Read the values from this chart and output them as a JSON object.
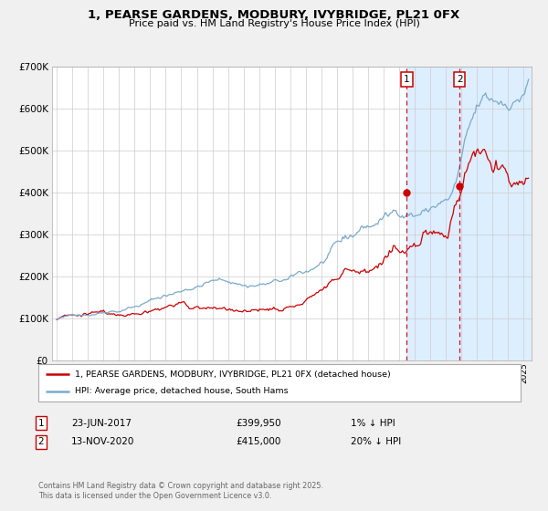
{
  "title": "1, PEARSE GARDENS, MODBURY, IVYBRIDGE, PL21 0FX",
  "subtitle": "Price paid vs. HM Land Registry's House Price Index (HPI)",
  "legend_line1": "1, PEARSE GARDENS, MODBURY, IVYBRIDGE, PL21 0FX (detached house)",
  "legend_line2": "HPI: Average price, detached house, South Hams",
  "footnote": "Contains HM Land Registry data © Crown copyright and database right 2025.\nThis data is licensed under the Open Government Licence v3.0.",
  "marker1_date": "23-JUN-2017",
  "marker1_price": 399950,
  "marker1_label": "1% ↓ HPI",
  "marker2_date": "13-NOV-2020",
  "marker2_price": 415000,
  "marker2_label": "20% ↓ HPI",
  "marker1_x": 2017.48,
  "marker2_x": 2020.87,
  "red_line_color": "#cc0000",
  "blue_line_color": "#7aaacc",
  "shaded_region_color": "#ddeeff",
  "vline_color": "#cc0000",
  "background_color": "#f0f0f0",
  "plot_background": "#ffffff",
  "ylim": [
    0,
    700000
  ],
  "xlim_start": 1995,
  "xlim_end": 2025.5,
  "yticks": [
    0,
    100000,
    200000,
    300000,
    400000,
    500000,
    600000,
    700000
  ],
  "ytick_labels": [
    "£0",
    "£100K",
    "£200K",
    "£300K",
    "£400K",
    "£500K",
    "£600K",
    "£700K"
  ]
}
